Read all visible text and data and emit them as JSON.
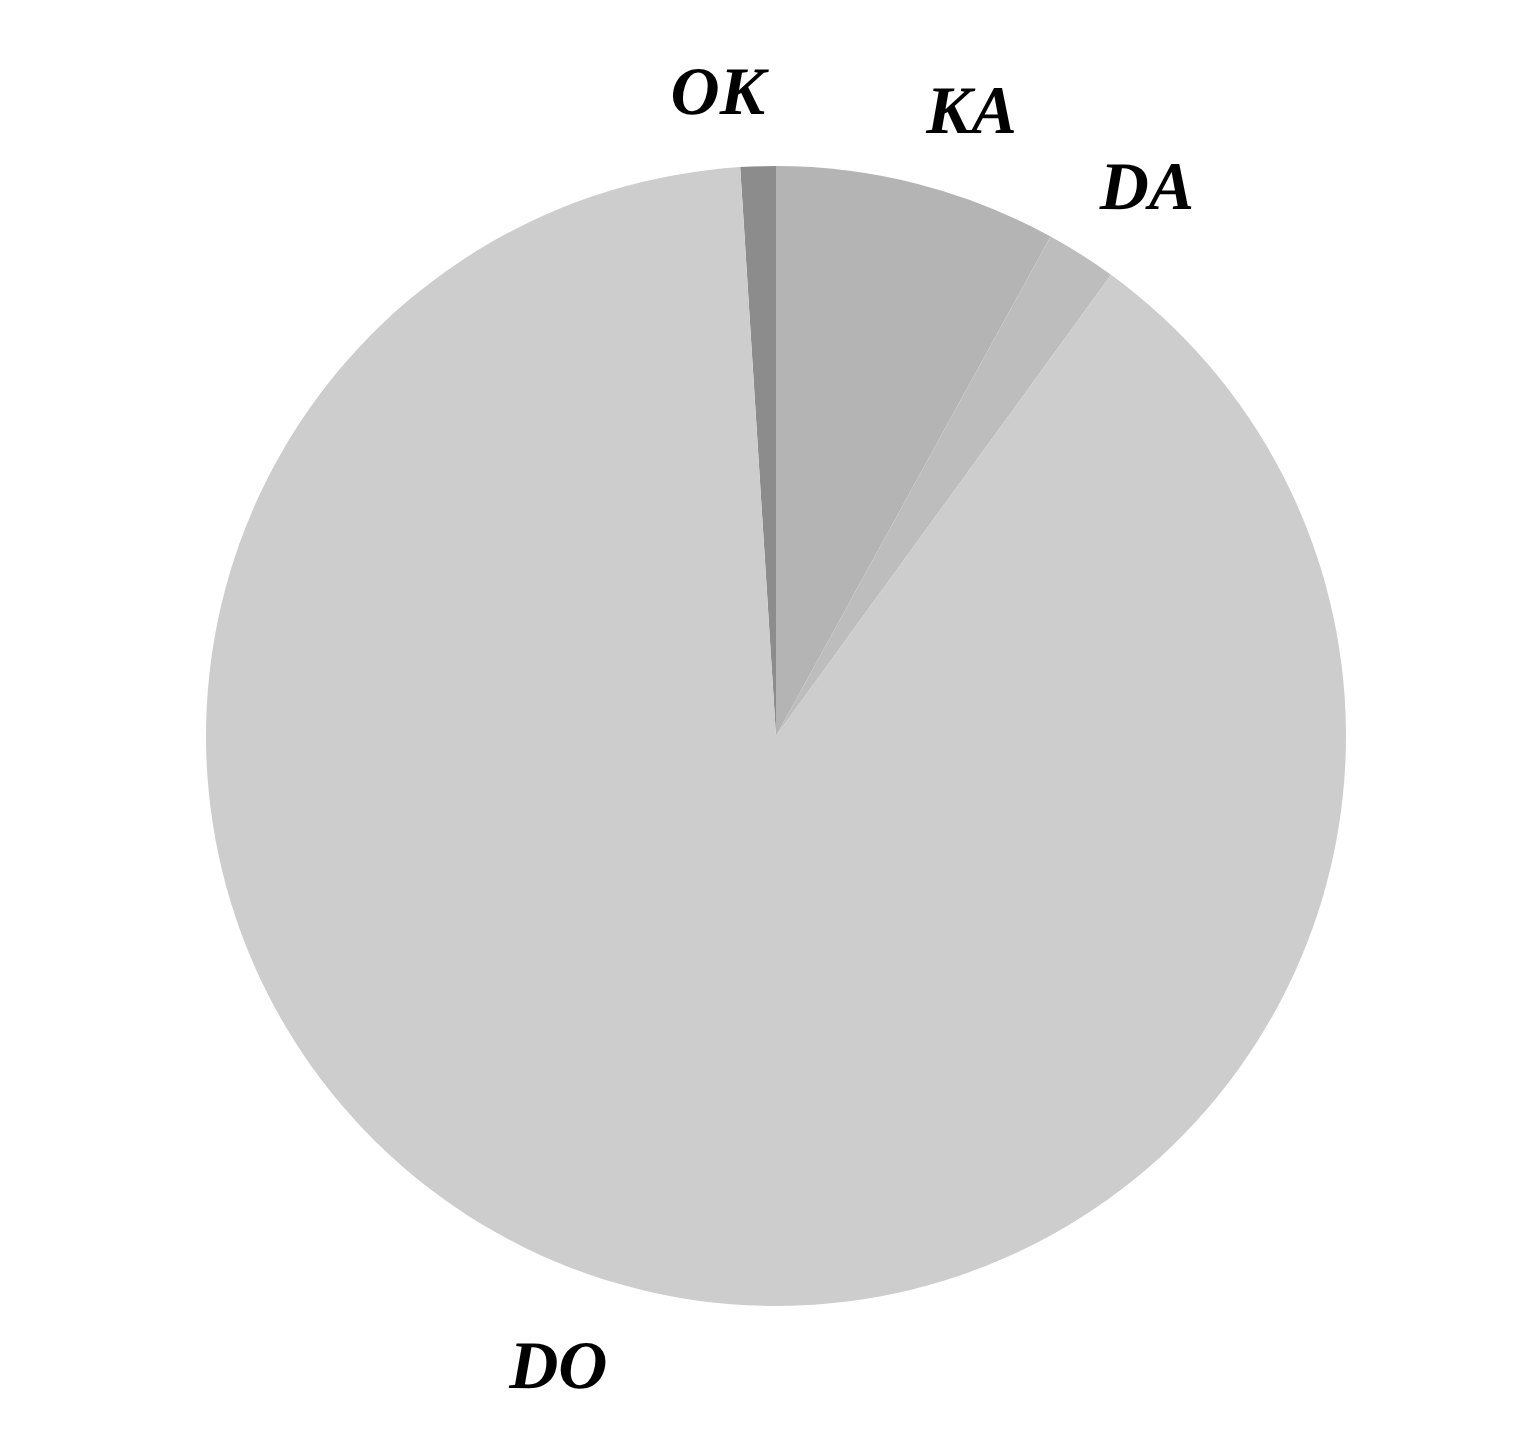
{
  "chart_data": {
    "type": "pie",
    "categories": [
      "OK",
      "KA",
      "DA",
      "DO"
    ],
    "values": [
      1,
      8,
      2,
      89
    ],
    "colors": [
      "#8c8c8c",
      "#b4b4b4",
      "#bdbdbd",
      "#cdcdcd"
    ]
  }
}
